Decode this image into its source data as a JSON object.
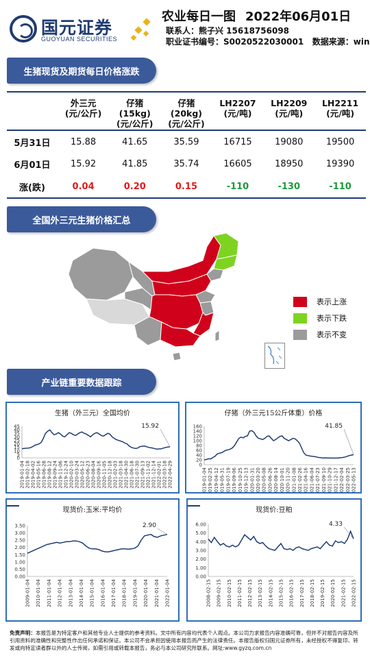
{
  "header": {
    "company_cn": "国元证券",
    "company_en": "GUOYUAN SECURITIES",
    "title": "农业每日一图",
    "date": "2022年06月01日",
    "contact": "联系人：熊子兴  15618756098",
    "cert": "职业证书编号：S0020522030001",
    "source": "数据来源：wind"
  },
  "sections": {
    "s1": "生猪现货及期货每日价格涨跌",
    "s2": "全国外三元生猪价格汇总",
    "s3": "产业链重要数据跟踪"
  },
  "table": {
    "columns": [
      [
        "外三元",
        "(元/公斤)"
      ],
      [
        "仔猪",
        "(15kg)",
        "(元/公斤)"
      ],
      [
        "仔猪",
        "(20kg)",
        "(元/公斤)"
      ],
      [
        "LH2207",
        "(元/吨)"
      ],
      [
        "LH2209",
        "(元/吨)"
      ],
      [
        "LH2211",
        "(元/吨)"
      ]
    ],
    "rows": [
      {
        "label": "5月31日",
        "values": [
          "15.88",
          "41.65",
          "35.59",
          "16715",
          "19080",
          "19500"
        ]
      },
      {
        "label": "6月01日",
        "values": [
          "15.92",
          "41.85",
          "35.74",
          "16605",
          "18950",
          "19390"
        ]
      }
    ],
    "change": {
      "label": "涨(跌)",
      "values": [
        "0.04",
        "0.20",
        "0.15",
        "-110",
        "-130",
        "-110"
      ]
    }
  },
  "legend": [
    {
      "label": "表示上涨",
      "color": "#d0021b"
    },
    {
      "label": "表示下跌",
      "color": "#7ed321"
    },
    {
      "label": "表示不变",
      "color": "#9b9b9b"
    }
  ],
  "chart_data": [
    {
      "type": "line",
      "title": "生猪（外三元）全国均价",
      "ylim": [
        0,
        45
      ],
      "yticks": [
        0,
        5,
        10,
        15,
        20,
        25,
        30,
        35,
        40,
        45
      ],
      "xticks": [
        "2019-01-04",
        "2019-02-18",
        "2019-04-02",
        "2019-05-16",
        "2019-06-28",
        "2019-08-12",
        "2019-09-24",
        "2019-11-06",
        "2019-12-24",
        "2020-02-10",
        "2020-03-24",
        "2020-05-12",
        "2020-06-23",
        "2020-08-04",
        "2020-09-16",
        "2020-11-05",
        "2020-12-18",
        "2021-02-03",
        "2021-03-18",
        "2021-04-30",
        "2021-06-18",
        "2021-07-30",
        "2021-09-13",
        "2021-11-02",
        "2021-12-14",
        "2022-02-01",
        "2022-03-18",
        "2022-04-29"
      ],
      "last_label": "15.92",
      "values": [
        13,
        13.5,
        13.8,
        14,
        14.5,
        16,
        18,
        19,
        20,
        22,
        28,
        35,
        38,
        40,
        36,
        33,
        34,
        36,
        34,
        31,
        30,
        33,
        36,
        35,
        33,
        32,
        34,
        36,
        37,
        35,
        34,
        32,
        30,
        33,
        35,
        36,
        34,
        32,
        31,
        33,
        35,
        34,
        30,
        28,
        26,
        25,
        24,
        23,
        21,
        20,
        17,
        15,
        14,
        13.5,
        14,
        16,
        16.5,
        17,
        16,
        15,
        14.5,
        14,
        13,
        12.5,
        12.8,
        13,
        14,
        14.8,
        15.5,
        15.92
      ]
    },
    {
      "type": "line",
      "title": "仔猪（外三元15公斤体重）价格",
      "ylim": [
        0,
        160
      ],
      "yticks": [
        0,
        20,
        40,
        60,
        80,
        100,
        120,
        140,
        160
      ],
      "xticks": [
        "2019-01-04",
        "2019-02-25",
        "2019-04-12",
        "2019-05-31",
        "2019-07-19",
        "2019-09-06",
        "2019-10-25",
        "2019-12-13",
        "2020-01-31",
        "2020-03-20",
        "2020-05-08",
        "2020-06-26",
        "2020-08-14",
        "2020-10-01",
        "2020-11-20",
        "2021-01-08",
        "2021-02-26",
        "2021-04-16",
        "2021-06-04",
        "2021-07-23",
        "2021-09-10",
        "2021-10-29",
        "2021-12-17",
        "2022-02-04",
        "2022-03-25",
        "2022-05-13"
      ],
      "last_label": "41.85",
      "values": [
        20,
        22,
        25,
        24,
        30,
        35,
        45,
        48,
        50,
        55,
        60,
        62,
        65,
        70,
        80,
        95,
        110,
        115,
        112,
        118,
        120,
        140,
        142,
        135,
        120,
        110,
        108,
        105,
        110,
        118,
        120,
        110,
        100,
        105,
        112,
        118,
        120,
        110,
        105,
        100,
        105,
        110,
        108,
        100,
        90,
        70,
        50,
        40,
        38,
        36,
        35,
        34,
        32,
        30,
        29,
        28,
        28.5,
        28,
        28,
        28,
        27.5,
        28,
        28,
        29,
        30,
        32,
        35,
        38,
        40,
        41.85
      ]
    },
    {
      "type": "line",
      "title": "现货价:玉米:平均价",
      "ylim": [
        0,
        3.5
      ],
      "yticks": [
        "0.00",
        "0.50",
        "1.00",
        "1.50",
        "2.00",
        "2.50",
        "3.00",
        "3.50"
      ],
      "xticks": [
        "2009-01-04",
        "2010-01-04",
        "2011-01-04",
        "2012-01-04",
        "2013-01-04",
        "2014-01-04",
        "2015-01-04",
        "2016-01-04",
        "2017-01-04",
        "2018-01-04",
        "2019-01-04",
        "2020-01-04",
        "2021-01-04",
        "2022-01-04"
      ],
      "last_label": "2.90",
      "values": [
        1.6,
        1.7,
        1.8,
        1.9,
        2.0,
        2.1,
        2.2,
        2.25,
        2.3,
        2.35,
        2.3,
        2.35,
        2.4,
        2.4,
        2.45,
        2.45,
        2.4,
        2.3,
        2.1,
        1.95,
        1.9,
        1.9,
        1.85,
        1.75,
        1.7,
        1.7,
        1.75,
        1.8,
        1.85,
        1.9,
        1.9,
        1.88,
        1.9,
        1.95,
        2.1,
        2.5,
        2.8,
        2.85,
        2.9,
        2.75,
        2.7,
        2.8,
        2.85,
        2.9
      ]
    },
    {
      "type": "line",
      "title": "现货价:豆粕",
      "ylim": [
        0,
        6
      ],
      "yticks": [
        "0.00",
        "1.00",
        "2.00",
        "3.00",
        "4.00",
        "5.00",
        "6.00"
      ],
      "xticks": [
        "2008-02-15",
        "2009-02-15",
        "2010-02-15",
        "2011-02-15",
        "2012-02-15",
        "2013-02-15",
        "2014-02-15",
        "2015-02-15",
        "2016-02-15",
        "2017-02-15",
        "2018-02-15",
        "2019-02-15",
        "2020-02-15",
        "2021-02-15",
        "2022-02-15"
      ],
      "last_label": "4.33",
      "values": [
        4.3,
        3.9,
        4.5,
        4.0,
        3.6,
        3.8,
        3.5,
        3.4,
        3.6,
        3.4,
        3.6,
        4.2,
        4.8,
        4.5,
        4.2,
        4.6,
        4.0,
        3.8,
        3.9,
        3.5,
        3.2,
        3.1,
        3.0,
        3.4,
        3.8,
        3.2,
        3.1,
        3.2,
        3.0,
        3.3,
        3.4,
        3.2,
        3.1,
        3.0,
        3.2,
        3.3,
        3.4,
        3.2,
        3.6,
        4.0,
        3.6,
        3.5,
        4.1,
        3.9,
        4.0,
        3.8,
        4.3,
        5.2,
        4.33
      ]
    }
  ],
  "footer": {
    "label": "免责声明：",
    "text": "本报告是为特定客户和其他专业人士提供的参考资料。文中所有内容均代表个人观点。本公司力求报告内容准确可靠，但并不对报告内容及所引用资料的准确性和完整性作出任何承诺和保证。本公司不会承担因使用本报告而产生的法律责任。本报告版权归国元证券所有，未经授权不得复印、转发或向特定读者群以外的人士传阅，如需引用或转载本报告，务必与本公司研究所联系。网址:www.gyzq.com.cn"
  }
}
